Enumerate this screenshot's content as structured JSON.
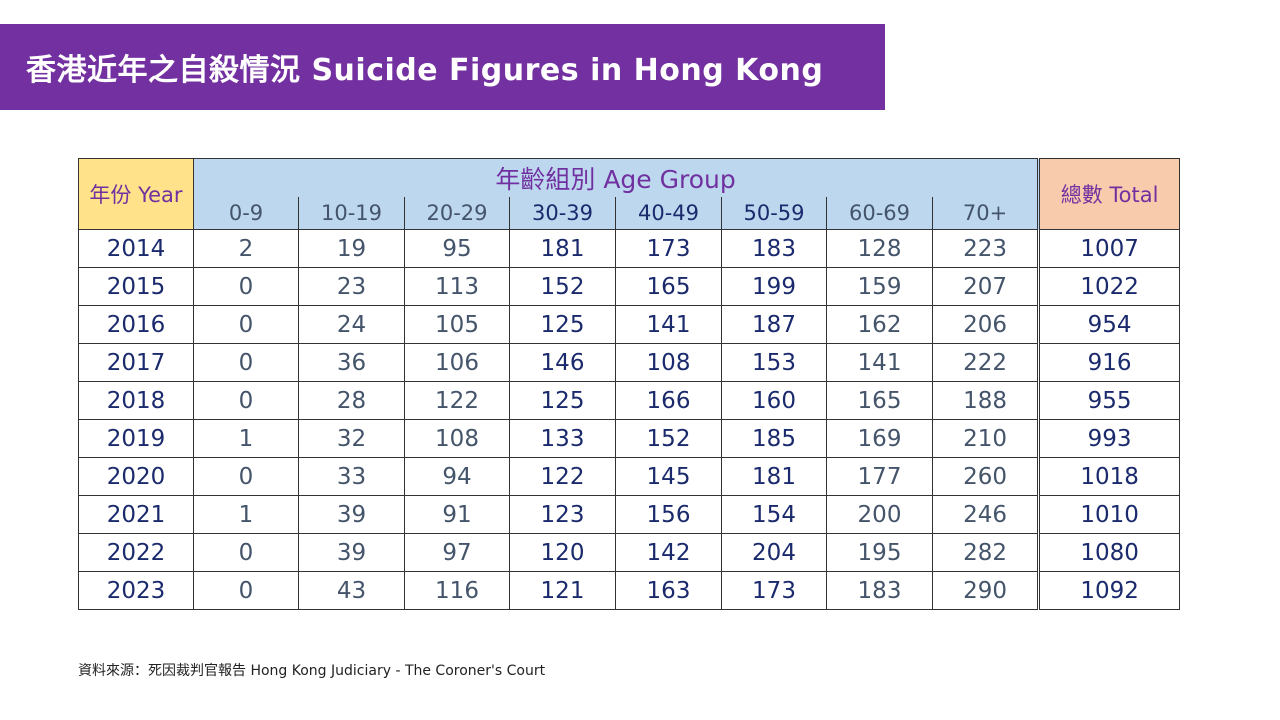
{
  "title": "香港近年之自殺情況 Suicide Figures in Hong Kong",
  "table": {
    "year_header": "年份 Year",
    "group_header": "年齡組別 Age Group",
    "total_header": "總數 Total",
    "age_groups": [
      "0-9",
      "10-19",
      "20-29",
      "30-39",
      "40-49",
      "50-59",
      "60-69",
      "70+"
    ],
    "rows": [
      {
        "year": "2014",
        "values": [
          "2",
          "19",
          "95",
          "181",
          "173",
          "183",
          "128",
          "223"
        ],
        "total": "1007"
      },
      {
        "year": "2015",
        "values": [
          "0",
          "23",
          "113",
          "152",
          "165",
          "199",
          "159",
          "207"
        ],
        "total": "1022"
      },
      {
        "year": "2016",
        "values": [
          "0",
          "24",
          "105",
          "125",
          "141",
          "187",
          "162",
          "206"
        ],
        "total": "954"
      },
      {
        "year": "2017",
        "values": [
          "0",
          "36",
          "106",
          "146",
          "108",
          "153",
          "141",
          "222"
        ],
        "total": "916"
      },
      {
        "year": "2018",
        "values": [
          "0",
          "28",
          "122",
          "125",
          "166",
          "160",
          "165",
          "188"
        ],
        "total": "955"
      },
      {
        "year": "2019",
        "values": [
          "1",
          "32",
          "108",
          "133",
          "152",
          "185",
          "169",
          "210"
        ],
        "total": "993"
      },
      {
        "year": "2020",
        "values": [
          "0",
          "33",
          "94",
          "122",
          "145",
          "181",
          "177",
          "260"
        ],
        "total": "1018"
      },
      {
        "year": "2021",
        "values": [
          "1",
          "39",
          "91",
          "123",
          "156",
          "154",
          "200",
          "246"
        ],
        "total": "1010"
      },
      {
        "year": "2022",
        "values": [
          "0",
          "39",
          "97",
          "120",
          "142",
          "204",
          "195",
          "282"
        ],
        "total": "1080"
      },
      {
        "year": "2023",
        "values": [
          "0",
          "43",
          "116",
          "121",
          "163",
          "173",
          "183",
          "290"
        ],
        "total": "1092"
      }
    ]
  },
  "source": "資料來源：死因裁判官報告 Hong Kong Judiciary - The Coroner's Court",
  "colors": {
    "banner": "#7330a0",
    "year_header_bg": "#ffe28a",
    "group_header_bg": "#bdd7ee",
    "total_header_bg": "#f8cbad",
    "header_text": "#7030a0",
    "dark_value": "#1a2a6c",
    "light_value": "#44546a"
  }
}
